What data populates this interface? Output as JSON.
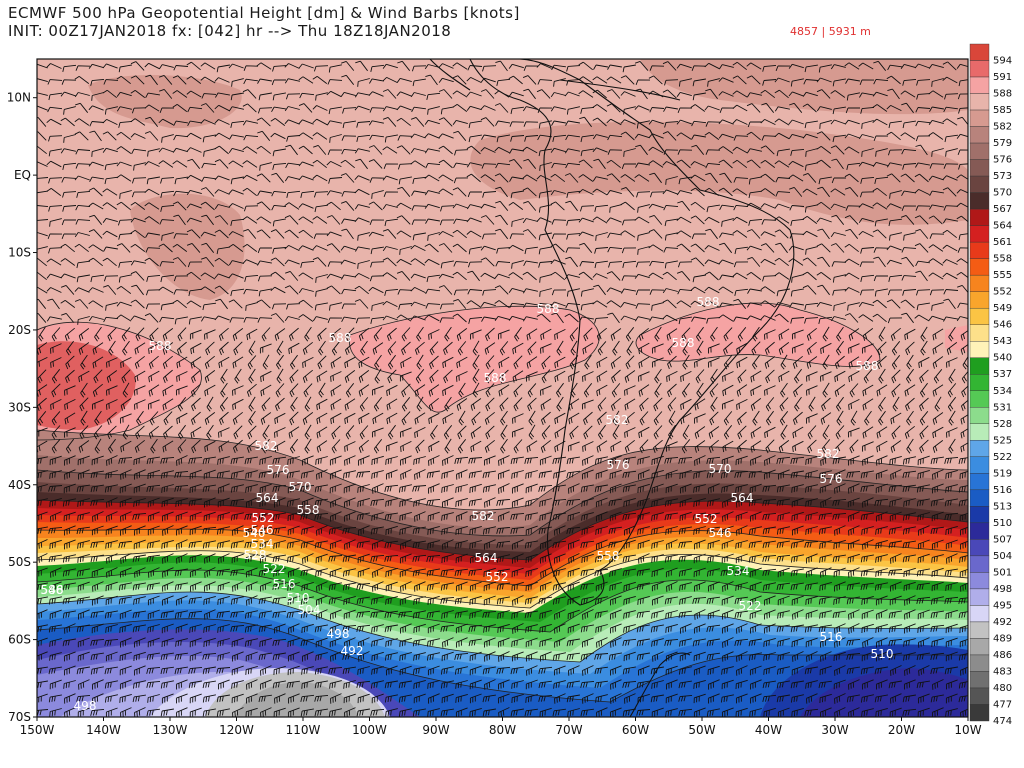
{
  "header": {
    "title_line1": "ECMWF 500 hPa Geopotential Height [dm] & Wind Barbs [knots]",
    "title_line2": "INIT: 00Z17JAN2018 fx: [042] hr --> Thu 18Z18JAN2018",
    "minmax": "4857 | 5931 m"
  },
  "map": {
    "lat_labels": [
      "10N",
      "EQ",
      "10S",
      "20S",
      "30S",
      "40S",
      "50S",
      "60S",
      "70S"
    ],
    "lon_labels": [
      "150W",
      "140W",
      "130W",
      "120W",
      "110W",
      "100W",
      "90W",
      "80W",
      "70W",
      "60W",
      "50W",
      "40W",
      "30W",
      "20W",
      "10W"
    ],
    "contour_labels": [
      {
        "text": "588",
        "kind": "light"
      },
      {
        "text": "588",
        "kind": "light"
      },
      {
        "text": "588",
        "kind": "light"
      },
      {
        "text": "588",
        "kind": "light"
      },
      {
        "text": "588",
        "kind": "light"
      },
      {
        "text": "588",
        "kind": "light"
      },
      {
        "text": "588",
        "kind": "light"
      },
      {
        "text": "588",
        "kind": "light"
      },
      {
        "text": "582",
        "kind": "light"
      },
      {
        "text": "582",
        "kind": "light"
      },
      {
        "text": "582",
        "kind": "light"
      },
      {
        "text": "582",
        "kind": "light"
      },
      {
        "text": "576",
        "kind": "light"
      },
      {
        "text": "576",
        "kind": "light"
      },
      {
        "text": "576",
        "kind": "light"
      },
      {
        "text": "570",
        "kind": "light"
      },
      {
        "text": "570",
        "kind": "light"
      },
      {
        "text": "564",
        "kind": "light"
      },
      {
        "text": "564",
        "kind": "light"
      },
      {
        "text": "564",
        "kind": "light"
      },
      {
        "text": "558",
        "kind": "light"
      },
      {
        "text": "558",
        "kind": "light"
      },
      {
        "text": "552",
        "kind": "light"
      },
      {
        "text": "552",
        "kind": "light"
      },
      {
        "text": "552",
        "kind": "light"
      },
      {
        "text": "546",
        "kind": "light"
      },
      {
        "text": "546",
        "kind": "light"
      },
      {
        "text": "546",
        "kind": "light"
      },
      {
        "text": "540",
        "kind": "light"
      },
      {
        "text": "534",
        "kind": "light"
      },
      {
        "text": "534",
        "kind": "light"
      },
      {
        "text": "528",
        "kind": "light"
      },
      {
        "text": "522",
        "kind": "light"
      },
      {
        "text": "522",
        "kind": "light"
      },
      {
        "text": "516",
        "kind": "light"
      },
      {
        "text": "516",
        "kind": "light"
      },
      {
        "text": "510",
        "kind": "light"
      },
      {
        "text": "510",
        "kind": "light"
      },
      {
        "text": "504",
        "kind": "light"
      },
      {
        "text": "498",
        "kind": "light"
      },
      {
        "text": "498",
        "kind": "light"
      },
      {
        "text": "492",
        "kind": "light"
      }
    ]
  },
  "colorbar": {
    "levels": [
      "594",
      "591",
      "588",
      "585",
      "582",
      "579",
      "576",
      "573",
      "570",
      "567",
      "564",
      "561",
      "558",
      "555",
      "552",
      "549",
      "546",
      "543",
      "540",
      "537",
      "534",
      "531",
      "528",
      "525",
      "522",
      "519",
      "516",
      "513",
      "510",
      "507",
      "504",
      "501",
      "498",
      "495",
      "492",
      "489",
      "486",
      "483",
      "480",
      "477",
      "474"
    ],
    "colors": [
      "#d9463a",
      "#e86a6a",
      "#f5a3a3",
      "#e8b4ab",
      "#d69a90",
      "#b8837c",
      "#a0706a",
      "#855a55",
      "#6a4440",
      "#4a2c2a",
      "#b01818",
      "#d42020",
      "#e83a1a",
      "#f45c14",
      "#f7841e",
      "#f9a52c",
      "#fbc444",
      "#fde08a",
      "#fff2b8",
      "#1f9e1f",
      "#33b533",
      "#55c955",
      "#8cdc8c",
      "#b8ecb8",
      "#5fa6e8",
      "#3b8de0",
      "#2874d6",
      "#1a5cc4",
      "#1a3aa8",
      "#2c2a9a",
      "#4a48b8",
      "#6a68cc",
      "#8c8add",
      "#b0aeea",
      "#d8d6f6",
      "#c2c2c2",
      "#a8a8a8",
      "#8c8c8c",
      "#707070",
      "#555555",
      "#3a3a3a"
    ]
  },
  "legend_colors": {
    "ridge": "#f5a3a3",
    "ridge_core": "#d9463a",
    "background": "#e8b4ab"
  }
}
